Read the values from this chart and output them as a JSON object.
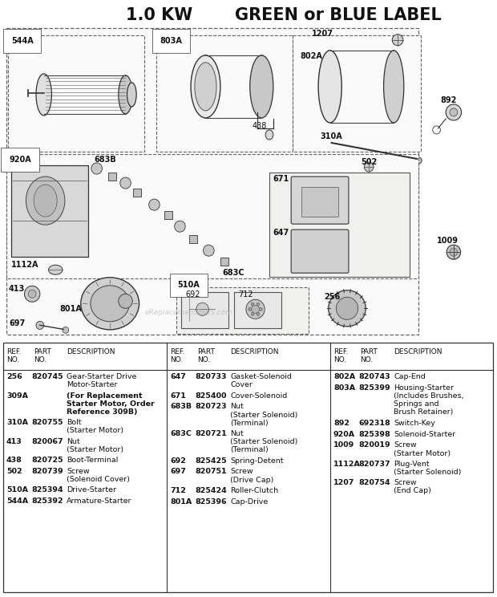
{
  "title_left": "1.0 KW",
  "title_right": "GREEN or BLUE LABEL",
  "bg_color": "#ffffff",
  "col1_data": [
    [
      "256",
      "820745",
      "Gear-Starter Drive\nMotor-Starter"
    ],
    [
      "309A",
      "",
      "(For Replacement\nStarter Motor, Order\nReference 309B)"
    ],
    [
      "310A",
      "820755",
      "Bolt\n(Starter Motor)"
    ],
    [
      "413",
      "820067",
      "Nut\n(Starter Motor)"
    ],
    [
      "438",
      "820725",
      "Boot-Terminal"
    ],
    [
      "502",
      "820739",
      "Screw\n(Solenoid Cover)"
    ],
    [
      "510A",
      "825394",
      "Drive-Starter"
    ],
    [
      "544A",
      "825392",
      "Armature-Starter"
    ]
  ],
  "col2_data": [
    [
      "647",
      "820733",
      "Gasket-Solenoid\nCover"
    ],
    [
      "671",
      "825400",
      "Cover-Solenoid"
    ],
    [
      "683B",
      "820723",
      "Nut\n(Starter Solenoid)\n(Terminal)"
    ],
    [
      "683C",
      "820721",
      "Nut\n(Starter Solenoid)\n(Terminal)"
    ],
    [
      "692",
      "825425",
      "Spring-Detent"
    ],
    [
      "697",
      "820751",
      "Screw\n(Drive Cap)"
    ],
    [
      "712",
      "825424",
      "Roller-Clutch"
    ],
    [
      "801A",
      "825396",
      "Cap-Drive"
    ]
  ],
  "col3_data": [
    [
      "802A",
      "820743",
      "Cap-End"
    ],
    [
      "803A",
      "825399",
      "Housing-Starter\n(Includes Brushes,\nSprings and\nBrush Retainer)"
    ],
    [
      "892",
      "692318",
      "Switch-Key"
    ],
    [
      "920A",
      "825398",
      "Solenoid-Starter"
    ],
    [
      "1009",
      "820019",
      "Screw\n(Starter Motor)"
    ],
    [
      "1112A",
      "820737",
      "Plug-Vent\n(Starter Solenoid)"
    ],
    [
      "1207",
      "820754",
      "Screw\n(End Cap)"
    ]
  ]
}
